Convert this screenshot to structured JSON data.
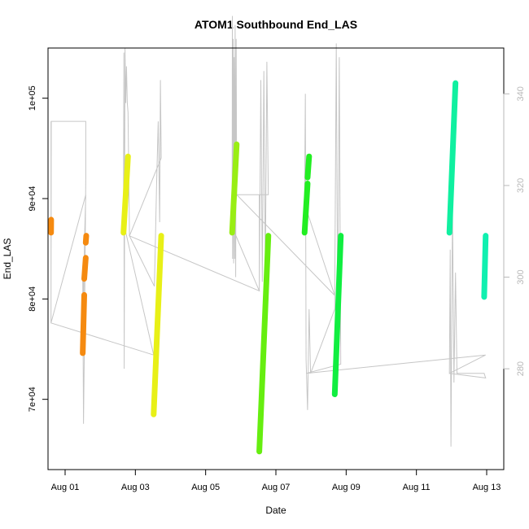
{
  "chart_data": {
    "type": "scatter",
    "title": "ATOM1 Southbound End_LAS",
    "xlabel": "Date",
    "ylabel": "End_LAS",
    "x_ticks": [
      "Aug 01",
      "Aug 03",
      "Aug 05",
      "Aug 07",
      "Aug 09",
      "Aug 11",
      "Aug 13"
    ],
    "y_ticks": [
      "7e+04",
      "8e+04",
      "9e+04",
      "1e+05"
    ],
    "y2_ticks": [
      "280",
      "300",
      "320",
      "340"
    ],
    "xlim": [
      "2015-07-31T22:00",
      "2015-08-13T12:00"
    ],
    "ylim": [
      63000,
      105000
    ],
    "y2lim": [
      258,
      350
    ],
    "colors": {
      "primary_line": "#bbbbbb",
      "secondary_line": "#c6c6c6",
      "right_axis": "#b8b8b8"
    },
    "primary_series": [
      {
        "name": "",
        "color": "#f58a10",
        "segments": [
          {
            "x": [
              "2015-08-01T00:00",
              "2015-08-01T00:05"
            ],
            "y": [
              86600,
              87900
            ]
          },
          {
            "x": [
              "2015-08-01T21:00",
              "2015-08-01T22:00"
            ],
            "y": [
              74600,
              80400
            ]
          },
          {
            "x": [
              "2015-08-01T22:00",
              "2015-08-01T23:00"
            ],
            "y": [
              82000,
              84100
            ]
          },
          {
            "x": [
              "2015-08-01T23:00",
              "2015-08-01T23:20"
            ],
            "y": [
              85600,
              86300
            ]
          }
        ]
      },
      {
        "name": "",
        "color": "#e8f017",
        "segments": [
          {
            "x": [
              "2015-08-03T00:00",
              "2015-08-03T03:00"
            ],
            "y": [
              86600,
              94200
            ]
          },
          {
            "x": [
              "2015-08-03T20:00",
              "2015-08-04T01:00"
            ],
            "y": [
              68500,
              86300
            ]
          }
        ]
      },
      {
        "name": "",
        "color": "#99ee14",
        "segments": [
          {
            "x": [
              "2015-08-06T00:00",
              "2015-08-06T03:00"
            ],
            "y": [
              86600,
              95400
            ]
          }
        ]
      },
      {
        "name": "",
        "color": "#66ee10",
        "segments": [
          {
            "x": [
              "2015-08-06T18:00",
              "2015-08-07T00:00"
            ],
            "y": [
              64800,
              86300
            ]
          }
        ]
      },
      {
        "name": "",
        "color": "#22ee22",
        "segments": [
          {
            "x": [
              "2015-08-08T00:00",
              "2015-08-08T02:00"
            ],
            "y": [
              86600,
              91500
            ]
          },
          {
            "x": [
              "2015-08-08T02:00",
              "2015-08-08T03:00"
            ],
            "y": [
              92100,
              94200
            ]
          }
        ]
      },
      {
        "name": "",
        "color": "#10ee40",
        "segments": [
          {
            "x": [
              "2015-08-08T20:00",
              "2015-08-09T00:00"
            ],
            "y": [
              70500,
              86300
            ]
          }
        ]
      },
      {
        "name": "",
        "color": "#10f0a0",
        "segments": [
          {
            "x": [
              "2015-08-12T00:00",
              "2015-08-12T04:00"
            ],
            "y": [
              86600,
              101500
            ]
          }
        ]
      },
      {
        "name": "",
        "color": "#10f0b0",
        "segments": [
          {
            "x": [
              "2015-08-12T23:00",
              "2015-08-13T00:00"
            ],
            "y": [
              80200,
              86300
            ]
          }
        ]
      }
    ],
    "secondary_line": {
      "x": [
        "2015-08-01T00:00",
        "2015-08-01T00:00",
        "2015-08-01T00:10",
        "2015-08-01T23:00",
        "2015-08-01T23:00",
        "2015-08-01T22:00",
        "2015-08-01T21:30",
        "2015-08-01T21:00",
        "2015-08-01T21:40",
        "2015-08-01T22:20",
        "2015-08-01T23:00",
        "2015-08-01T00:00",
        "2015-08-03T20:00",
        "2015-08-03T00:00",
        "2015-08-03T00:15",
        "2015-08-03T00:30",
        "2015-08-03T01:00",
        "2015-08-03T01:30",
        "2015-08-03T02:00",
        "2015-08-03T02:30",
        "2015-08-03T03:00",
        "2015-08-03T04:00",
        "2015-08-04T01:00",
        "2015-08-04T00:30",
        "2015-08-04T00:00",
        "2015-08-03T23:00",
        "2015-08-03T22:00",
        "2015-08-03T21:00",
        "2015-08-03T20:30",
        "2015-08-03T04:00",
        "2015-08-06T18:00",
        "2015-08-06T00:00",
        "2015-08-06T00:10",
        "2015-08-06T00:20",
        "2015-08-06T00:40",
        "2015-08-06T01:00",
        "2015-08-06T01:20",
        "2015-08-06T01:40",
        "2015-08-06T02:00",
        "2015-08-06T02:20",
        "2015-08-06T02:40",
        "2015-08-06T03:00",
        "2015-08-06T18:00",
        "2015-08-06T18:00",
        "2015-08-06T19:00",
        "2015-08-06T20:00",
        "2015-08-06T21:00",
        "2015-08-06T22:00",
        "2015-08-06T23:00",
        "2015-08-07T00:00",
        "2015-08-06T03:00",
        "2015-08-08T20:00",
        "2015-08-08T00:00",
        "2015-08-08T00:30",
        "2015-08-08T01:00",
        "2015-08-08T02:00",
        "2015-08-08T03:00",
        "2015-08-08T04:00",
        "2015-08-08T20:00",
        "2015-08-08T20:00",
        "2015-08-08T21:00",
        "2015-08-08T22:00",
        "2015-08-08T23:00",
        "2015-08-09T00:00",
        "2015-08-08T01:00",
        "2015-08-13T00:00",
        "2015-08-12T00:00",
        "2015-08-12T00:30",
        "2015-08-12T01:00",
        "2015-08-12T02:00",
        "2015-08-12T03:00",
        "2015-08-12T04:00",
        "2015-08-12T05:00",
        "2015-08-12T23:00",
        "2015-08-13T00:00",
        "2015-08-12T00:00"
      ],
      "y": [
        334,
        290,
        334,
        334,
        322,
        282,
        268,
        302,
        296,
        310,
        318,
        290,
        283,
        312,
        349,
        280,
        350,
        338,
        346,
        338,
        336,
        309,
        326,
        343,
        312,
        334,
        321,
        306,
        298,
        309,
        297,
        311,
        357,
        304,
        352,
        303,
        348,
        304,
        355,
        300,
        352,
        318,
        318,
        297,
        343,
        299,
        345,
        301,
        347,
        318,
        318,
        296,
        316,
        340,
        282,
        271,
        293,
        279,
        293,
        296,
        351,
        289,
        348,
        281,
        279,
        283,
        279,
        306,
        263,
        315,
        277,
        301,
        279,
        279,
        278,
        279
      ]
    }
  }
}
